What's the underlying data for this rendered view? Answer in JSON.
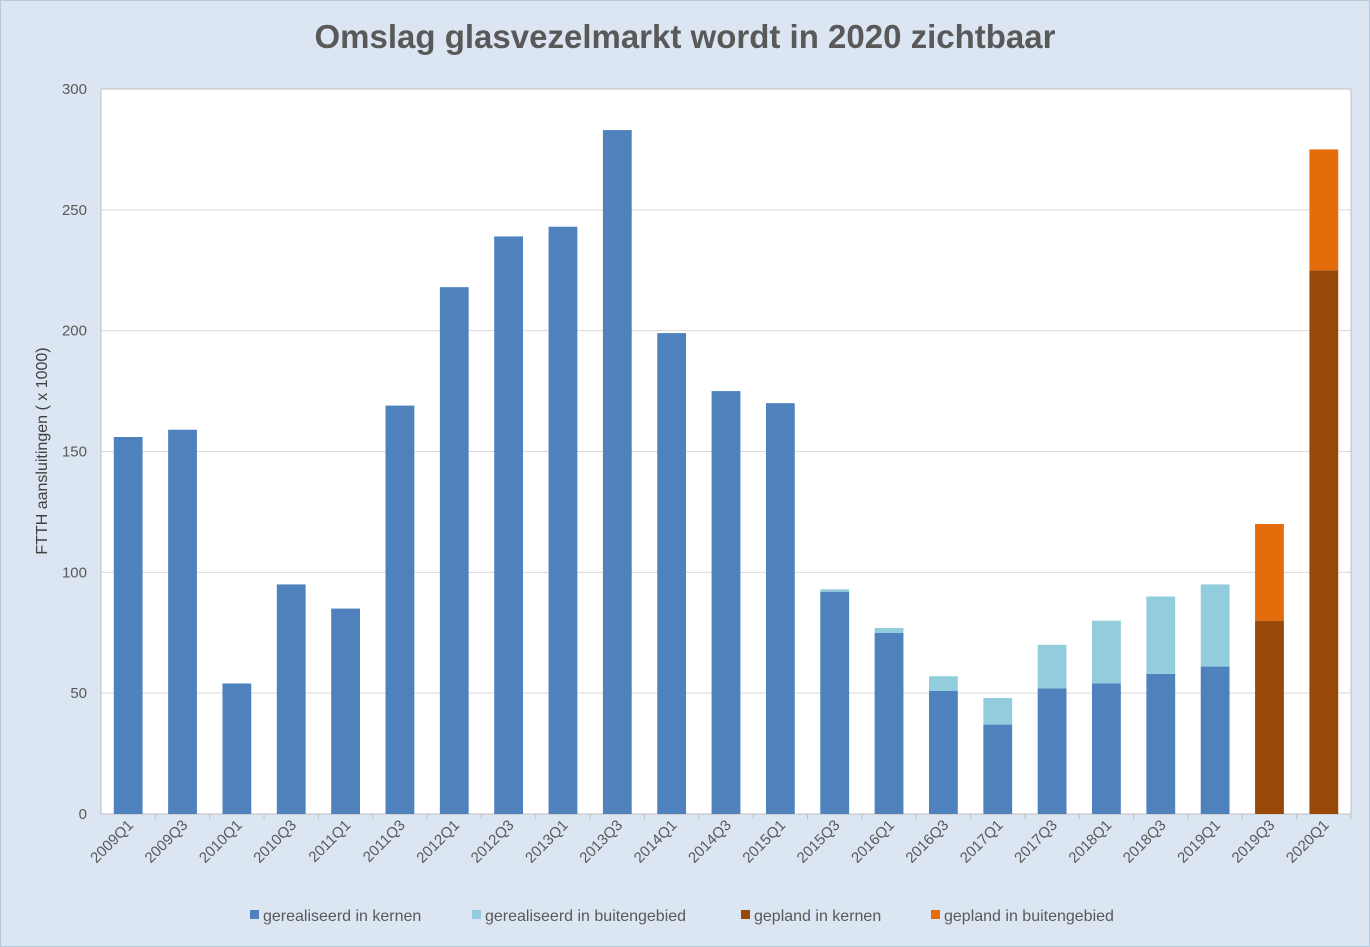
{
  "chart_data": {
    "type": "bar",
    "stacked": true,
    "title": "Omslag glasvezelmarkt wordt in 2020 zichtbaar",
    "xlabel": "",
    "ylabel": "FTTH aansluitingen ( x 1000)",
    "ylim": [
      0,
      300
    ],
    "yticks": [
      0,
      50,
      100,
      150,
      200,
      250,
      300
    ],
    "grid": true,
    "legend_position": "bottom",
    "categories": [
      "2009Q1",
      "2009Q3",
      "2010Q1",
      "2010Q3",
      "2011Q1",
      "2011Q3",
      "2012Q1",
      "2012Q3",
      "2013Q1",
      "2013Q3",
      "2014Q1",
      "2014Q3",
      "2015Q1",
      "2015Q3",
      "2016Q1",
      "2016Q3",
      "2017Q1",
      "2017Q3",
      "2018Q1",
      "2018Q3",
      "2019Q1",
      "2019Q3",
      "2020Q1"
    ],
    "series": [
      {
        "name": "gerealiseerd in kernen",
        "color": "#4f81bd",
        "values": [
          156,
          159,
          54,
          95,
          85,
          169,
          218,
          239,
          243,
          283,
          199,
          175,
          170,
          92,
          75,
          51,
          37,
          52,
          54,
          58,
          61,
          0,
          0
        ]
      },
      {
        "name": "gerealiseerd in buitengebied",
        "color": "#93cddd",
        "values": [
          0,
          0,
          0,
          0,
          0,
          0,
          0,
          0,
          0,
          0,
          0,
          0,
          0,
          1,
          2,
          6,
          11,
          18,
          26,
          32,
          34,
          0,
          0
        ]
      },
      {
        "name": "gepland in kernen",
        "color": "#984807",
        "values": [
          0,
          0,
          0,
          0,
          0,
          0,
          0,
          0,
          0,
          0,
          0,
          0,
          0,
          0,
          0,
          0,
          0,
          0,
          0,
          0,
          0,
          80,
          225
        ]
      },
      {
        "name": "gepland in buitengebied",
        "color": "#e46c0a",
        "values": [
          0,
          0,
          0,
          0,
          0,
          0,
          0,
          0,
          0,
          0,
          0,
          0,
          0,
          0,
          0,
          0,
          0,
          0,
          0,
          0,
          0,
          40,
          50
        ]
      }
    ]
  }
}
